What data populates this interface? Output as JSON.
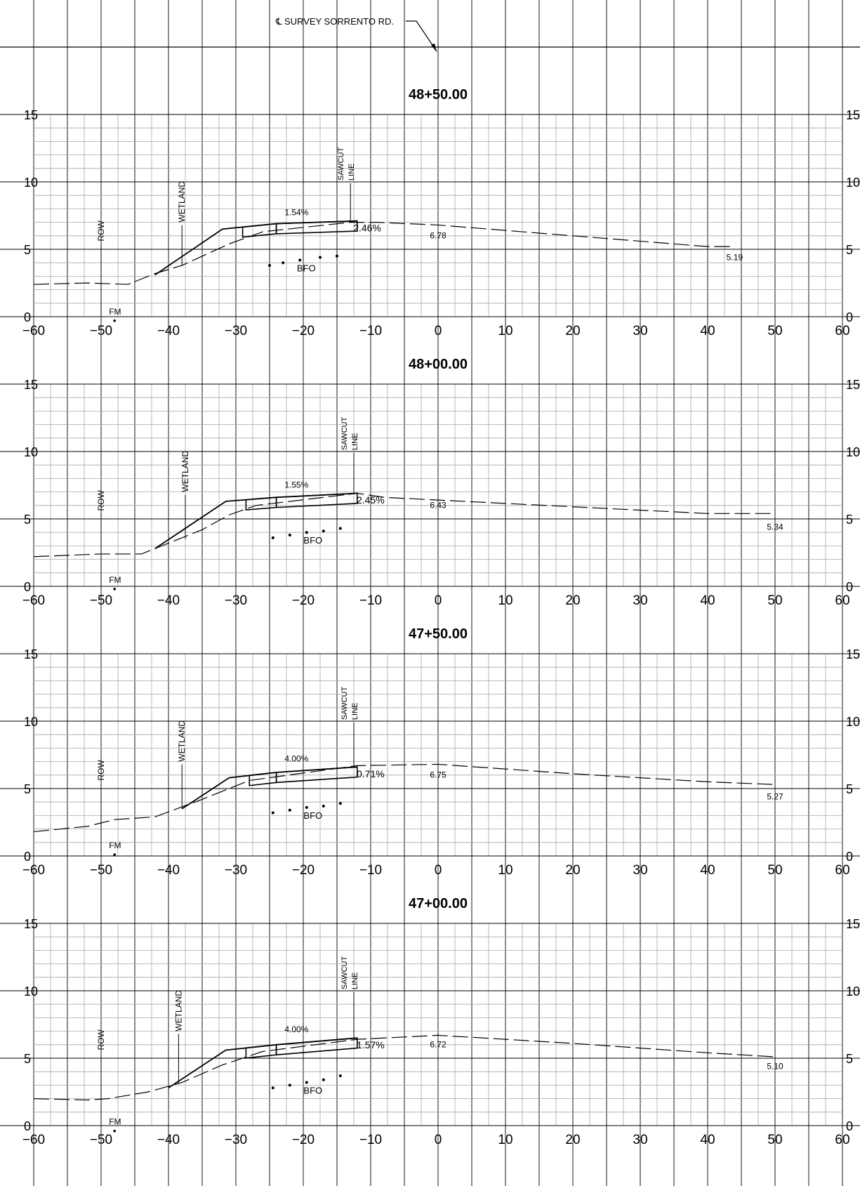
{
  "header": {
    "survey_label": "℄ SURVEY SORRENTO RD."
  },
  "axis": {
    "x_ticks": [
      -60,
      -50,
      -40,
      -30,
      -20,
      -10,
      0,
      10,
      20,
      30,
      40,
      50,
      60
    ],
    "y_ticks": [
      0,
      5,
      10,
      15
    ],
    "x_tick_labels": [
      "−60",
      "−50",
      "−40",
      "−30",
      "−20",
      "−10",
      "0",
      "10",
      "20",
      "30",
      "40",
      "50",
      "60"
    ],
    "y_tick_labels": [
      "0",
      "5",
      "10",
      "15"
    ],
    "xlim": [
      -60,
      60
    ],
    "ylim": [
      0,
      15
    ]
  },
  "labels": {
    "row": "ROW",
    "fm": "FM",
    "wetland": "WETLAND",
    "sawcut_line1": "SAWCUT",
    "sawcut_line2": "LINE",
    "bfo": "BFO"
  },
  "colors": {
    "line": "#000000",
    "grid_minor": "#a6a6a6",
    "grid_major": "#000000",
    "background": "#ffffff"
  },
  "chart_data": [
    {
      "type": "line",
      "title": "48+50.00",
      "existing_ground": [
        [
          -60,
          2.4
        ],
        [
          -52,
          2.5
        ],
        [
          -46,
          2.4
        ],
        [
          -42,
          3.2
        ],
        [
          -38,
          3.8
        ],
        [
          -31,
          5.4
        ],
        [
          -26,
          6.3
        ],
        [
          -13,
          7.0
        ],
        [
          -9,
          7.0
        ],
        [
          0,
          6.8
        ],
        [
          20,
          6.0
        ],
        [
          40,
          5.2
        ],
        [
          44,
          5.2
        ]
      ],
      "proposed_section": [
        [
          -42,
          3.1
        ],
        [
          -32,
          6.5
        ],
        [
          -24,
          6.9
        ],
        [
          -12,
          7.1
        ]
      ],
      "row_x": -50,
      "fm": [
        -48,
        -0.3
      ],
      "wetland": [
        -38,
        3.8
      ],
      "sawcut_x": -13,
      "bfo": [
        [
          -25,
          3.8
        ],
        [
          -23,
          4.0
        ],
        [
          -20.5,
          4.2
        ],
        [
          -17.5,
          4.4
        ],
        [
          -15,
          4.5
        ]
      ],
      "slopes": {
        "left": "1.54%",
        "right": "2.46%"
      },
      "centerline_elev": "6.78",
      "end_elev": "5.19",
      "end_x": 44
    },
    {
      "type": "line",
      "title": "48+00.00",
      "existing_ground": [
        [
          -60,
          2.2
        ],
        [
          -50,
          2.4
        ],
        [
          -44,
          2.4
        ],
        [
          -40,
          3.2
        ],
        [
          -35,
          4.2
        ],
        [
          -31,
          5.3
        ],
        [
          -27,
          6.0
        ],
        [
          -12,
          6.9
        ],
        [
          -8,
          6.6
        ],
        [
          0,
          6.4
        ],
        [
          20,
          5.9
        ],
        [
          40,
          5.4
        ],
        [
          50,
          5.4
        ]
      ],
      "proposed_section": [
        [
          -42,
          2.8
        ],
        [
          -31.5,
          6.3
        ],
        [
          -24,
          6.6
        ],
        [
          -12,
          6.9
        ]
      ],
      "row_x": -50,
      "fm": [
        -48,
        -0.2
      ],
      "wetland": [
        -37.5,
        3.5
      ],
      "sawcut_x": -12.5,
      "bfo": [
        [
          -24.5,
          3.6
        ],
        [
          -22,
          3.8
        ],
        [
          -19.5,
          4.0
        ],
        [
          -17,
          4.1
        ],
        [
          -14.5,
          4.3
        ]
      ],
      "slopes": {
        "left": "1.55%",
        "right": "2.45%"
      },
      "centerline_elev": "6.43",
      "end_elev": "5.34",
      "end_x": 50
    },
    {
      "type": "line",
      "title": "47+50.00",
      "existing_ground": [
        [
          -60,
          1.8
        ],
        [
          -52,
          2.2
        ],
        [
          -48,
          2.7
        ],
        [
          -42,
          2.9
        ],
        [
          -35,
          4.2
        ],
        [
          -28,
          5.6
        ],
        [
          -12,
          6.7
        ],
        [
          0,
          6.8
        ],
        [
          20,
          6.1
        ],
        [
          40,
          5.5
        ],
        [
          50,
          5.3
        ]
      ],
      "proposed_section": [
        [
          -38,
          3.5
        ],
        [
          -31,
          5.8
        ],
        [
          -24,
          6.2
        ],
        [
          -12,
          6.6
        ]
      ],
      "row_x": -50,
      "fm": [
        -48,
        0.1
      ],
      "wetland": [
        -38,
        3.5
      ],
      "sawcut_x": -12.5,
      "bfo": [
        [
          -24.5,
          3.2
        ],
        [
          -22,
          3.4
        ],
        [
          -19.5,
          3.6
        ],
        [
          -17,
          3.7
        ],
        [
          -14.5,
          3.9
        ]
      ],
      "slopes": {
        "left": "4.00%",
        "right": "0.71%"
      },
      "centerline_elev": "6.75",
      "end_elev": "5.27",
      "end_x": 50
    },
    {
      "type": "line",
      "title": "47+00.00",
      "existing_ground": [
        [
          -60,
          2.0
        ],
        [
          -52,
          1.9
        ],
        [
          -49,
          2.0
        ],
        [
          -43,
          2.5
        ],
        [
          -38,
          3.2
        ],
        [
          -32,
          4.5
        ],
        [
          -26,
          5.5
        ],
        [
          -12,
          6.4
        ],
        [
          0,
          6.7
        ],
        [
          20,
          6.1
        ],
        [
          40,
          5.4
        ],
        [
          50,
          5.1
        ]
      ],
      "proposed_section": [
        [
          -40,
          2.8
        ],
        [
          -31.5,
          5.6
        ],
        [
          -24,
          6.0
        ],
        [
          -12,
          6.5
        ]
      ],
      "row_x": -50,
      "fm": [
        -48,
        -0.4
      ],
      "wetland": [
        -38.5,
        3.1
      ],
      "sawcut_x": -12.5,
      "bfo": [
        [
          -24.5,
          2.8
        ],
        [
          -22,
          3.0
        ],
        [
          -19.5,
          3.2
        ],
        [
          -17,
          3.4
        ],
        [
          -14.5,
          3.7
        ]
      ],
      "slopes": {
        "left": "4.00%",
        "right": "1.57%"
      },
      "centerline_elev": "6.72",
      "end_elev": "5.10",
      "end_x": 50
    }
  ]
}
